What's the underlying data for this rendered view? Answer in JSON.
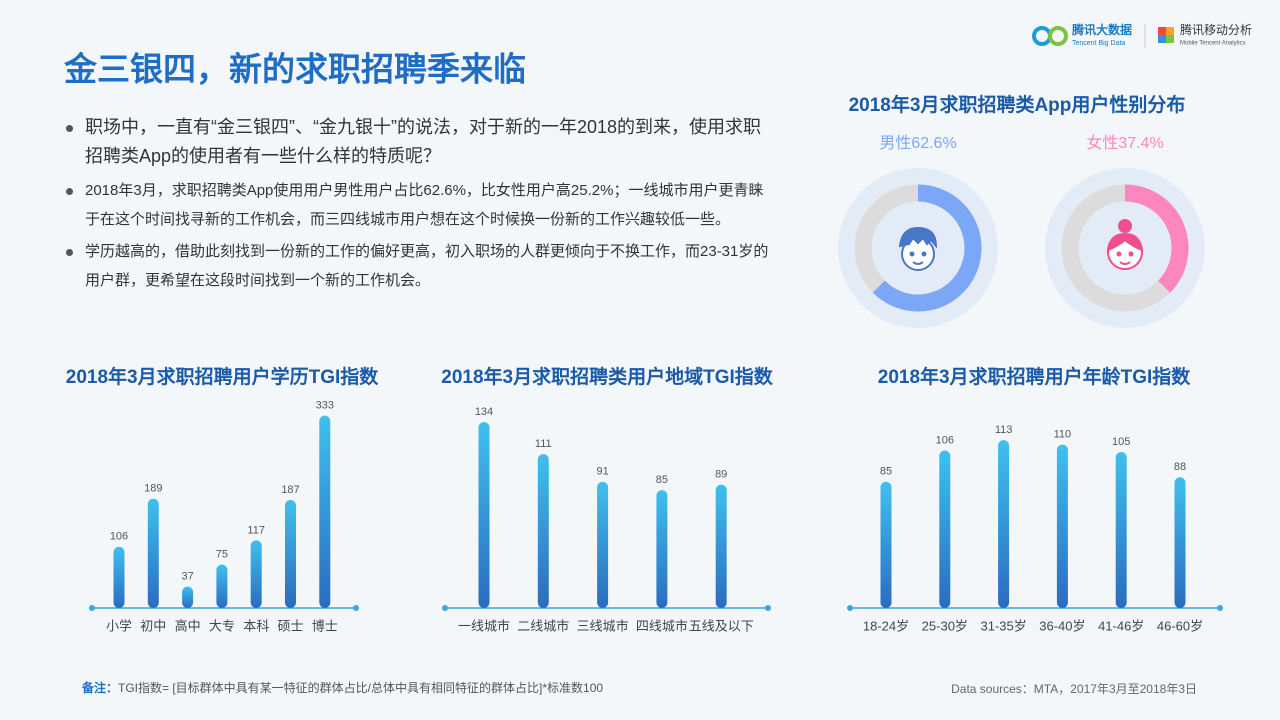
{
  "title": "金三银四，新的求职招聘季来临",
  "logos": [
    "腾讯大数据",
    "Tencent Big Data",
    "腾讯移动分析",
    "Mobile Tencent Analytics"
  ],
  "bullets": [
    "职场中，一直有“金三银四”、“金九银十”的说法，对于新的一年2018的到来，使用求职招聘类App的使用者有一些什么样的特质呢？",
    "2018年3月，求职招聘类App使用用户男性用户占比62.6%，比女性用户高25.2%；一线城市用户更青睐于在这个时间找寻新的工作机会，而三四线城市用户想在这个时候换一份新的工作兴趣较低一些。",
    "学历越高的，借助此刻找到一份新的工作的偏好更高，初入职场的人群更倾向于不换工作，而23-31岁的用户群，更希望在这段时间找到一个新的工作机会。"
  ],
  "note_label": "备注：",
  "note": "TGI指数= [目标群体中具有某一特征的群体占比/总体中具有相同特征的群体占比]*标准数100",
  "source": "Data sources：MTA，2017年3月至2018年3日",
  "chart_data": [
    {
      "type": "donut",
      "title": "2018年3月求职招聘类App用户性别分布",
      "values": [
        62.6,
        37.4
      ],
      "value_labels": [
        "男性62.6%",
        "女性37.4%"
      ],
      "colors": [
        "#7ba7f6",
        "#fd86c1"
      ],
      "ylim": [
        0,
        100
      ]
    },
    {
      "type": "bar",
      "title": "2018年3月求职招聘用户学历TGI指数",
      "categories": [
        "小学",
        "初中",
        "高中",
        "大专",
        "本科",
        "硕士",
        "博士"
      ],
      "values": [
        106,
        189,
        37,
        75,
        117,
        187,
        333
      ],
      "ylim": [
        0,
        360
      ]
    },
    {
      "type": "bar",
      "title": "2018年3月求职招聘类用户地域TGI指数",
      "categories": [
        "一线城市",
        "二线城市",
        "三线城市",
        "四线城市",
        "五线及以下"
      ],
      "values": [
        134,
        111,
        91,
        85,
        89
      ],
      "ylim": [
        0,
        150
      ]
    },
    {
      "type": "bar",
      "title": "2018年3月求职招聘用户年龄TGI指数",
      "categories": [
        "18-24岁",
        "25-30岁",
        "31-35岁",
        "36-40岁",
        "41-46岁",
        "46-60岁"
      ],
      "values": [
        85,
        106,
        113,
        110,
        105,
        88
      ],
      "ylim": [
        0,
        140
      ]
    }
  ]
}
